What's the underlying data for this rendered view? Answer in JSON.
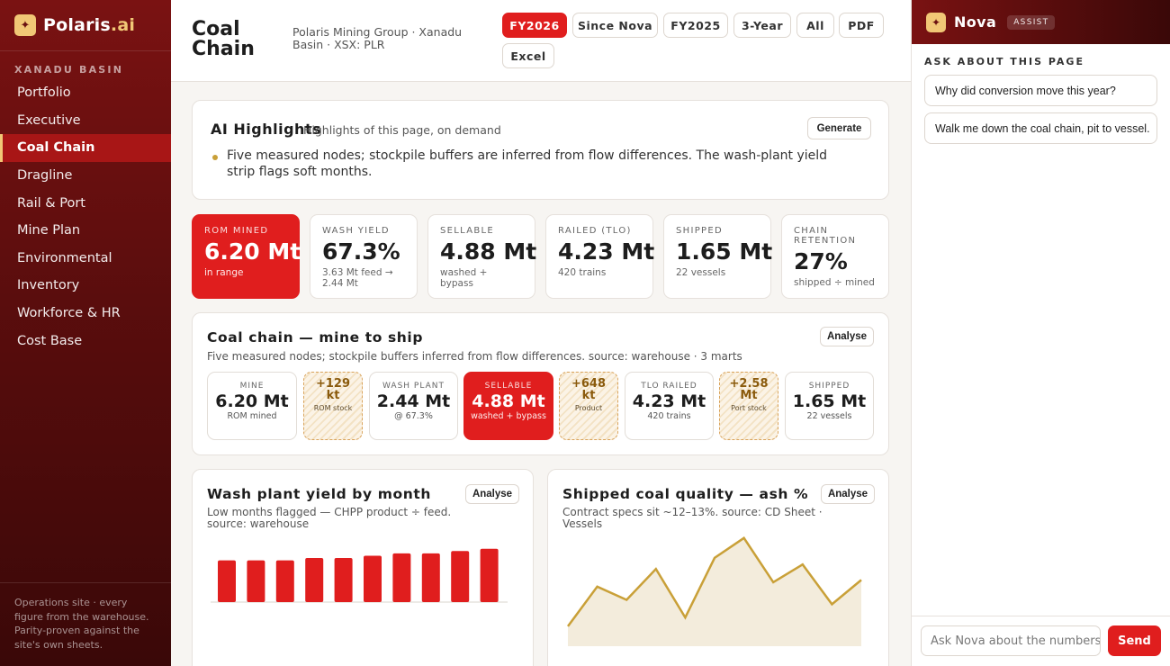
{
  "brand": {
    "name": "Polaris",
    "suffix": ".ai",
    "logo_icon": "star-icon"
  },
  "sidebar": {
    "section": "XANADU BASIN",
    "items": [
      {
        "label": "Portfolio"
      },
      {
        "label": "Executive"
      },
      {
        "label": "Coal Chain",
        "active": true
      },
      {
        "label": "Dragline"
      },
      {
        "label": "Rail & Port"
      },
      {
        "label": "Mine Plan"
      },
      {
        "label": "Environmental"
      },
      {
        "label": "Inventory"
      },
      {
        "label": "Workforce & HR"
      },
      {
        "label": "Cost Base"
      }
    ],
    "footer": "Operations site · every figure from the warehouse. Parity-proven against the site's own sheets."
  },
  "header": {
    "title": "Coal Chain",
    "subtitle": "Polaris Mining Group · Xanadu Basin · XSX: PLR",
    "periods": [
      "FY2026",
      "Since Nova",
      "FY2025",
      "3-Year",
      "All"
    ],
    "active_period": "FY2026",
    "exports": [
      "PDF",
      "Excel"
    ]
  },
  "highlights": {
    "title": "AI Highlights",
    "subtitle": "Highlights of this page, on demand",
    "button": "Generate",
    "bullet": "Five measured nodes; stockpile buffers are inferred from flow differences. The wash-plant yield strip flags soft months."
  },
  "kpis": [
    {
      "label": "ROM MINED",
      "value": "6.20 Mt",
      "note": "in range",
      "highlight": true
    },
    {
      "label": "WASH YIELD",
      "value": "67.3%",
      "note": "3.63 Mt feed → 2.44 Mt"
    },
    {
      "label": "SELLABLE",
      "value": "4.88 Mt",
      "note": "washed + bypass"
    },
    {
      "label": "RAILED (TLO)",
      "value": "4.23 Mt",
      "note": "420 trains"
    },
    {
      "label": "SHIPPED",
      "value": "1.65 Mt",
      "note": "22 vessels"
    },
    {
      "label": "CHAIN RETENTION",
      "value": "27%",
      "note": "shipped ÷ mined"
    }
  ],
  "chain": {
    "title": "Coal chain — mine to ship",
    "subtitle": "Five measured nodes; stockpile buffers inferred from flow differences. source: warehouse · 3 marts",
    "button": "Analyse",
    "nodes": [
      {
        "label": "MINE",
        "value": "6.20 Mt",
        "note": "ROM mined"
      },
      {
        "value": "+129 kt",
        "note": "ROM stock",
        "buffer": true
      },
      {
        "label": "WASH PLANT",
        "value": "2.44 Mt",
        "note": "@ 67.3%"
      },
      {
        "label": "SELLABLE",
        "value": "4.88 Mt",
        "note": "washed + bypass",
        "highlight": true
      },
      {
        "value": "+648 kt",
        "note": "Product",
        "buffer": true
      },
      {
        "label": "TLO RAILED",
        "value": "4.23 Mt",
        "note": "420 trains"
      },
      {
        "value": "+2.58 Mt",
        "note": "Port stock",
        "buffer": true
      },
      {
        "label": "SHIPPED",
        "value": "1.65 Mt",
        "note": "22 vessels"
      }
    ]
  },
  "yield_panel": {
    "title": "Wash plant yield by month",
    "subtitle": "Low months flagged — CHPP product ÷ feed. source: warehouse",
    "button": "Analyse"
  },
  "ash_panel": {
    "title": "Shipped coal quality — ash %",
    "subtitle": "Contract specs sit ~12–13%. source: CD Sheet · Vessels",
    "button": "Analyse"
  },
  "chart_data": [
    {
      "type": "bar",
      "title": "Wash plant yield by month",
      "values": [
        66.0,
        66.0,
        66.0,
        66.5,
        66.5,
        67.0,
        67.5,
        67.5,
        68.0,
        68.5
      ],
      "ylim": [
        57,
        70
      ],
      "color": "#e01e1e"
    },
    {
      "type": "area",
      "title": "Shipped coal quality — ash %",
      "values": [
        10.4,
        12.2,
        11.6,
        13.0,
        10.8,
        13.5,
        14.4,
        12.4,
        13.2,
        11.4,
        12.5
      ],
      "ylim": [
        9.5,
        14.8
      ],
      "color": "#c9a038",
      "fill": "#f3ecdc"
    }
  ],
  "nova": {
    "name": "Nova",
    "badge": "ASSIST",
    "ask_title": "ASK ABOUT THIS PAGE",
    "suggestions": [
      "Why did conversion move this year?",
      "Walk me down the coal chain, pit to vessel."
    ],
    "input_placeholder": "Ask Nova about the numbers…",
    "send": "Send"
  },
  "colors": {
    "accent": "#e01e1e",
    "brand_dark": "#5a0d0d",
    "gold": "#c9a038"
  }
}
